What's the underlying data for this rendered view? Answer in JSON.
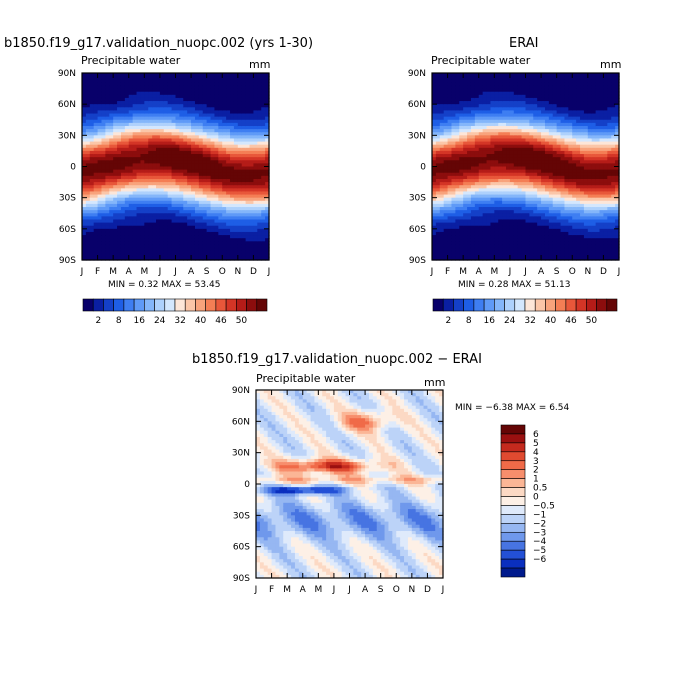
{
  "panels": [
    {
      "title": "b1850.f19_g17.validation_nuopc.002 (yrs 1-30)",
      "subtitle": "Precipitable water",
      "units": "mm",
      "stats": "MIN =    0.32 MAX =    53.45"
    },
    {
      "title": "ERAI",
      "subtitle": "Precipitable water",
      "units": "mm",
      "stats": "MIN =    0.28 MAX =    51.13"
    },
    {
      "title": "b1850.f19_g17.validation_nuopc.002 − ERAI",
      "subtitle": "Precipitable water",
      "units": "mm",
      "stats": "MIN =   −6.38 MAX =    6.54"
    }
  ],
  "chart_data": [
    {
      "type": "heatmap",
      "title": "b1850.f19_g17.validation_nuopc.002 (yrs 1-30)",
      "subtitle": "Precipitable water",
      "units": "mm",
      "x_ticks": [
        "J",
        "F",
        "M",
        "A",
        "M",
        "J",
        "J",
        "A",
        "S",
        "O",
        "N",
        "D",
        "J"
      ],
      "y_ticks": [
        "90N",
        "60N",
        "30N",
        "0",
        "30S",
        "60S",
        "90S"
      ],
      "min": 0.32,
      "max": 53.45,
      "colorbar": {
        "orientation": "horizontal",
        "labels": [
          "2",
          "8",
          "16",
          "24",
          "32",
          "40",
          "46",
          "50"
        ],
        "colors": [
          "#08006a",
          "#0a1fa3",
          "#1440c8",
          "#1e5ee6",
          "#3e7ef2",
          "#5f9af7",
          "#84b6fa",
          "#aed1fc",
          "#d4e7fd",
          "#fde6d8",
          "#fbc6a8",
          "#f8a37c",
          "#f47e55",
          "#e8573a",
          "#d43526",
          "#b51c18",
          "#8c0d0d",
          "#640505"
        ]
      }
    },
    {
      "type": "heatmap",
      "title": "ERAI",
      "subtitle": "Precipitable water",
      "units": "mm",
      "x_ticks": [
        "J",
        "F",
        "M",
        "A",
        "M",
        "J",
        "J",
        "A",
        "S",
        "O",
        "N",
        "D",
        "J"
      ],
      "y_ticks": [
        "90N",
        "60N",
        "30N",
        "0",
        "30S",
        "60S",
        "90S"
      ],
      "min": 0.28,
      "max": 51.13,
      "colorbar": {
        "orientation": "horizontal",
        "labels": [
          "2",
          "8",
          "16",
          "24",
          "32",
          "40",
          "46",
          "50"
        ],
        "colors": [
          "#08006a",
          "#0a1fa3",
          "#1440c8",
          "#1e5ee6",
          "#3e7ef2",
          "#5f9af7",
          "#84b6fa",
          "#aed1fc",
          "#d4e7fd",
          "#fde6d8",
          "#fbc6a8",
          "#f8a37c",
          "#f47e55",
          "#e8573a",
          "#d43526",
          "#b51c18",
          "#8c0d0d",
          "#640505"
        ]
      }
    },
    {
      "type": "heatmap",
      "title": "b1850.f19_g17.validation_nuopc.002 − ERAI",
      "subtitle": "Precipitable water",
      "units": "mm",
      "x_ticks": [
        "J",
        "F",
        "M",
        "A",
        "M",
        "J",
        "J",
        "A",
        "S",
        "O",
        "N",
        "D",
        "J"
      ],
      "y_ticks": [
        "90N",
        "60N",
        "30N",
        "0",
        "30S",
        "60S",
        "90S"
      ],
      "min": -6.38,
      "max": 6.54,
      "colorbar": {
        "orientation": "vertical",
        "labels": [
          "6",
          "5",
          "4",
          "3",
          "2",
          "1",
          "0.5",
          "0",
          "−0.5",
          "−1",
          "−2",
          "−3",
          "−4",
          "−5",
          "−6"
        ],
        "colors": [
          "#640505",
          "#9a1010",
          "#c42a1e",
          "#e04a30",
          "#f06a48",
          "#f78e6c",
          "#fbb696",
          "#fcd9c4",
          "#fdf0e6",
          "#dfeafb",
          "#bcd3f8",
          "#96b7f2",
          "#6f98ec",
          "#4774e2",
          "#2350d6",
          "#0a2fbf",
          "#001a8c"
        ]
      }
    }
  ]
}
